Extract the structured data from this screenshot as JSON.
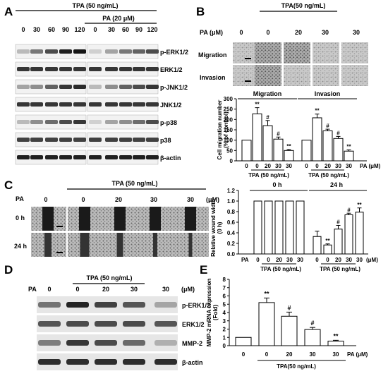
{
  "panelA": {
    "letter": "A",
    "tpa_label": "TPA (50 ng/mL)",
    "pa_label": "PA (20 μM)",
    "lanes": [
      "0",
      "30",
      "60",
      "90",
      "120",
      "0",
      "30",
      "60",
      "90",
      "120"
    ],
    "bands": [
      "p-ERK1/2",
      "ERK1/2",
      "p-JNK1/2",
      "JNK1/2",
      "p-p38",
      "p38",
      "β-actin"
    ]
  },
  "panelB": {
    "letter": "B",
    "tpa_label": "TPA(50 ng/mL)",
    "pa_header": "PA (μM)",
    "conc": [
      "0",
      "0",
      "20",
      "30",
      "30"
    ],
    "rows": [
      "Migration",
      "Invasion"
    ],
    "chart_data": {
      "type": "bar",
      "ylabel": "Cell migration number",
      "ylabel2": "(% of control)",
      "yticks": [
        "0",
        "50",
        "100",
        "150",
        "200",
        "250",
        "300"
      ],
      "ylim": [
        0,
        300
      ],
      "groups": [
        "Migration",
        "Invasion"
      ],
      "categories": [
        "0",
        "0",
        "20",
        "30",
        "30"
      ],
      "series": [
        {
          "name": "Migration",
          "values": [
            100,
            227,
            170,
            105,
            50
          ],
          "errors": [
            0,
            30,
            25,
            10,
            5
          ],
          "marks": [
            "",
            "**",
            "#",
            "#",
            "**"
          ]
        },
        {
          "name": "Invasion",
          "values": [
            100,
            208,
            145,
            108,
            47
          ],
          "errors": [
            0,
            18,
            8,
            10,
            6
          ],
          "marks": [
            "",
            "**",
            "#",
            "#",
            "**"
          ]
        }
      ],
      "pa_axis_label": "PA (μM)",
      "tpa_label": "TPA (50 ng/mL)"
    }
  },
  "panelC": {
    "letter": "C",
    "pa": "PA",
    "tpa_label": "TPA (50 ng/mL)",
    "conc": [
      "0",
      "0",
      "20",
      "30",
      "30"
    ],
    "unit": "(μM)",
    "rows": [
      "0 h",
      "24 h"
    ],
    "chart_data": {
      "type": "bar",
      "ylabel": "Relative wound width",
      "ylabel2": "(0 h)",
      "yticks": [
        "0.0",
        "0.2",
        "0.4",
        "0.6",
        "0.8",
        "1.0",
        "1.2"
      ],
      "ylim": [
        0,
        1.2
      ],
      "groups": [
        "0 h",
        "24 h"
      ],
      "categories": [
        "0",
        "0",
        "20",
        "30",
        "30"
      ],
      "series": [
        {
          "name": "0 h",
          "values": [
            1.0,
            1.0,
            1.0,
            1.0,
            1.0
          ],
          "errors": [
            0,
            0,
            0,
            0,
            0
          ],
          "marks": [
            "",
            "",
            "",
            "",
            ""
          ]
        },
        {
          "name": "24 h",
          "values": [
            0.33,
            0.17,
            0.47,
            0.74,
            0.79
          ],
          "errors": [
            0.1,
            0.02,
            0.07,
            0.03,
            0.08
          ],
          "marks": [
            "",
            "**",
            "#",
            "#",
            "**"
          ]
        }
      ],
      "pa_label": "PA",
      "unit": "(μM)",
      "tpa_label": "TPA (50 ng/mL)"
    }
  },
  "panelD": {
    "letter": "D",
    "pa": "PA",
    "tpa_label": "TPA (50 ng/mL)",
    "conc": [
      "0",
      "0",
      "20",
      "30",
      "30"
    ],
    "unit": "(μM)",
    "bands": [
      "p-ERK1/2",
      "ERK1/2",
      "MMP-2",
      "β-actin"
    ]
  },
  "panelE": {
    "letter": "E",
    "chart_data": {
      "type": "bar",
      "ylabel": "MMP-2 mRNA expression",
      "ylabel2": "(Fold)",
      "yticks": [
        "0",
        "1",
        "2",
        "3",
        "4",
        "5",
        "6",
        "7",
        "8"
      ],
      "ylim": [
        0,
        8
      ],
      "categories": [
        "0",
        "0",
        "20",
        "30",
        "30"
      ],
      "values": [
        1.0,
        5.2,
        3.55,
        1.95,
        0.55
      ],
      "errors": [
        0,
        0.55,
        0.5,
        0.25,
        0.1
      ],
      "marks": [
        "",
        "**",
        "#",
        "#",
        "**"
      ],
      "pa_label": "PA (μM)",
      "tpa_label": "TPA(50 ng/mL)"
    }
  }
}
